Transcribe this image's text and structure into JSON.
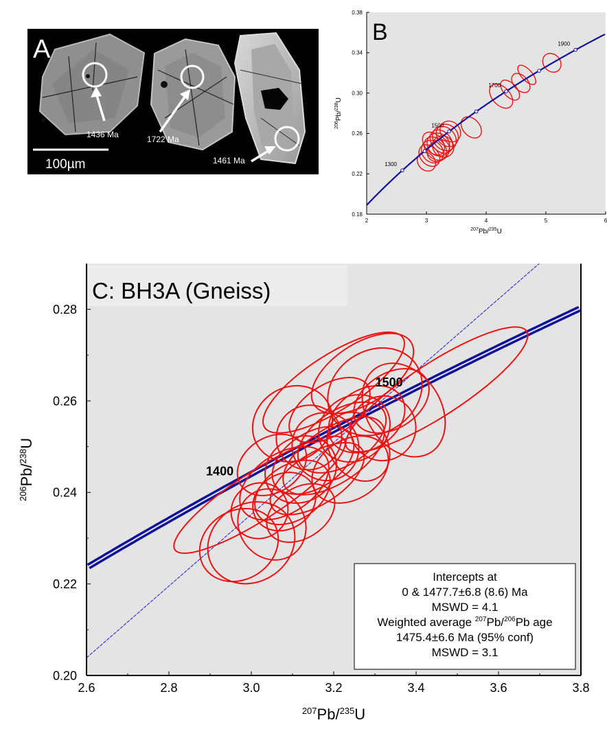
{
  "panel_a": {
    "letter": "A",
    "scale_bar": "100µm",
    "spots": [
      {
        "age": "1436 Ma"
      },
      {
        "age": "1722 Ma"
      },
      {
        "age": "1461 Ma"
      }
    ]
  },
  "chart_data": [
    {
      "id": "B",
      "type": "scatter",
      "panel_label": "B",
      "xlabel": "207Pb/235U",
      "ylabel": "206Pb/238U",
      "xlim": [
        2,
        6
      ],
      "ylim": [
        0.18,
        0.38
      ],
      "xticks": [
        "2",
        "3",
        "4",
        "5",
        "6"
      ],
      "yticks": [
        "0.18",
        "0.22",
        "0.26",
        "0.30",
        "0.34",
        "0.38"
      ],
      "grid": false,
      "concordia_ages": [
        "1300",
        "1500",
        "1700",
        "1900"
      ],
      "ellipses": [
        {
          "x": 3.05,
          "y": 0.238,
          "rx": 0.15,
          "ry": 0.012
        },
        {
          "x": 3.1,
          "y": 0.242,
          "rx": 0.17,
          "ry": 0.012
        },
        {
          "x": 3.15,
          "y": 0.245,
          "rx": 0.16,
          "ry": 0.013
        },
        {
          "x": 3.2,
          "y": 0.249,
          "rx": 0.18,
          "ry": 0.012
        },
        {
          "x": 3.25,
          "y": 0.252,
          "rx": 0.16,
          "ry": 0.013
        },
        {
          "x": 3.3,
          "y": 0.255,
          "rx": 0.18,
          "ry": 0.013
        },
        {
          "x": 3.2,
          "y": 0.243,
          "rx": 0.2,
          "ry": 0.01
        },
        {
          "x": 3.35,
          "y": 0.258,
          "rx": 0.17,
          "ry": 0.012
        },
        {
          "x": 3.12,
          "y": 0.25,
          "rx": 0.15,
          "ry": 0.013
        },
        {
          "x": 3.28,
          "y": 0.247,
          "rx": 0.17,
          "ry": 0.011
        },
        {
          "x": 3.0,
          "y": 0.232,
          "rx": 0.14,
          "ry": 0.01
        },
        {
          "x": 3.4,
          "y": 0.262,
          "rx": 0.16,
          "ry": 0.011
        },
        {
          "x": 3.75,
          "y": 0.266,
          "rx": 0.14,
          "ry": 0.012
        },
        {
          "x": 4.25,
          "y": 0.297,
          "rx": 0.15,
          "ry": 0.014
        },
        {
          "x": 4.4,
          "y": 0.303,
          "rx": 0.11,
          "ry": 0.012
        },
        {
          "x": 4.58,
          "y": 0.31,
          "rx": 0.12,
          "ry": 0.011
        },
        {
          "x": 4.68,
          "y": 0.318,
          "rx": 0.09,
          "ry": 0.012
        },
        {
          "x": 5.1,
          "y": 0.33,
          "rx": 0.14,
          "ry": 0.01
        }
      ]
    },
    {
      "id": "C",
      "type": "scatter",
      "title": "C: BH3A (Gneiss)",
      "xlabel": "207Pb/235U",
      "ylabel": "206Pb/238U",
      "xlim": [
        2.6,
        3.8
      ],
      "ylim": [
        0.2,
        0.29
      ],
      "xticks": [
        "2.6",
        "2.8",
        "3.0",
        "3.2",
        "3.4",
        "3.6",
        "3.8"
      ],
      "yticks": [
        "0.20",
        "0.22",
        "0.24",
        "0.26",
        "0.28"
      ],
      "grid": false,
      "concordia_ages": [
        "1400",
        "1500"
      ],
      "ellipses": [
        {
          "x": 3.02,
          "y": 0.2395,
          "rx": 0.245,
          "ry": 0.0052
        },
        {
          "x": 3.45,
          "y": 0.2625,
          "rx": 0.26,
          "ry": 0.0058
        },
        {
          "x": 3.2,
          "y": 0.264,
          "rx": 0.2,
          "ry": 0.006
        },
        {
          "x": 3.27,
          "y": 0.266,
          "rx": 0.14,
          "ry": 0.0065
        },
        {
          "x": 3.3,
          "y": 0.262,
          "rx": 0.12,
          "ry": 0.009
        },
        {
          "x": 3.37,
          "y": 0.258,
          "rx": 0.09,
          "ry": 0.011
        },
        {
          "x": 3.1,
          "y": 0.255,
          "rx": 0.1,
          "ry": 0.008
        },
        {
          "x": 3.0,
          "y": 0.229,
          "rx": 0.11,
          "ry": 0.0085
        },
        {
          "x": 2.97,
          "y": 0.2285,
          "rx": 0.1,
          "ry": 0.0075
        },
        {
          "x": 3.05,
          "y": 0.233,
          "rx": 0.08,
          "ry": 0.008
        },
        {
          "x": 3.08,
          "y": 0.242,
          "rx": 0.12,
          "ry": 0.0065
        },
        {
          "x": 3.12,
          "y": 0.245,
          "rx": 0.09,
          "ry": 0.007
        },
        {
          "x": 3.15,
          "y": 0.247,
          "rx": 0.11,
          "ry": 0.006
        },
        {
          "x": 3.18,
          "y": 0.25,
          "rx": 0.08,
          "ry": 0.0075
        },
        {
          "x": 3.22,
          "y": 0.252,
          "rx": 0.12,
          "ry": 0.006
        },
        {
          "x": 3.1,
          "y": 0.24,
          "rx": 0.1,
          "ry": 0.006
        },
        {
          "x": 3.25,
          "y": 0.254,
          "rx": 0.09,
          "ry": 0.007
        },
        {
          "x": 3.16,
          "y": 0.243,
          "rx": 0.13,
          "ry": 0.0055
        },
        {
          "x": 3.28,
          "y": 0.256,
          "rx": 0.1,
          "ry": 0.0065
        },
        {
          "x": 3.05,
          "y": 0.246,
          "rx": 0.09,
          "ry": 0.006
        },
        {
          "x": 3.2,
          "y": 0.248,
          "rx": 0.14,
          "ry": 0.006
        },
        {
          "x": 3.32,
          "y": 0.254,
          "rx": 0.08,
          "ry": 0.007
        },
        {
          "x": 3.14,
          "y": 0.252,
          "rx": 0.08,
          "ry": 0.007
        },
        {
          "x": 3.24,
          "y": 0.245,
          "rx": 0.1,
          "ry": 0.0065
        },
        {
          "x": 3.08,
          "y": 0.238,
          "rx": 0.08,
          "ry": 0.006
        },
        {
          "x": 3.19,
          "y": 0.258,
          "rx": 0.11,
          "ry": 0.0055
        },
        {
          "x": 3.34,
          "y": 0.26,
          "rx": 0.1,
          "ry": 0.006
        },
        {
          "x": 3.12,
          "y": 0.2355,
          "rx": 0.09,
          "ry": 0.0055
        },
        {
          "x": 3.26,
          "y": 0.25,
          "rx": 0.07,
          "ry": 0.008
        },
        {
          "x": 3.02,
          "y": 0.236,
          "rx": 0.07,
          "ry": 0.006
        }
      ],
      "annotation": {
        "line1": "Intercepts at",
        "line2": "0 & 1477.7±6.8 (8.6) Ma",
        "line3": "MSWD = 4.1",
        "line4_pre": "Weighted average ",
        "line4_sup1": "207",
        "line4_mid": "Pb/",
        "line4_sup2": "206",
        "line4_post": "Pb age",
        "line5": "1475.4±6.6 Ma (95% conf)",
        "line6": "MSWD = 3.1"
      }
    }
  ],
  "colors": {
    "ellipse": "#ee1111",
    "concordia": "#10129a",
    "plot_bg": "#e4e4e4",
    "panel_a_bg": "#000000"
  }
}
